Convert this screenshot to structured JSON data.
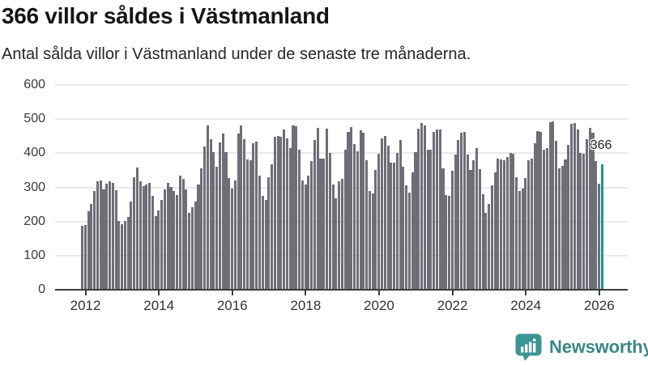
{
  "header": {
    "title": "366 villor såldes i Västmanland",
    "subtitle": "Antal sålda villor i Västmanland under de senaste tre månaderna."
  },
  "chart_data": {
    "type": "bar",
    "title": "366 villor såldes i Västmanland",
    "subtitle": "Antal sålda villor i Västmanland under de senaste tre månaderna.",
    "ylabel": "",
    "xlabel": "",
    "ylim": [
      0,
      600
    ],
    "yticks": [
      0,
      100,
      200,
      300,
      400,
      500,
      600
    ],
    "xticks": [
      "2012",
      "2014",
      "2016",
      "2018",
      "2020",
      "2022",
      "2024",
      "2026"
    ],
    "grid": true,
    "frequency": "monthly",
    "x_start": "2012-01",
    "x_end": "2026-03",
    "bar_color": "#6e6e76",
    "highlight_color": "#1b949b",
    "highlight_last": true,
    "last_value_label": "366",
    "values": [
      185,
      187,
      227,
      248,
      287,
      315,
      318,
      291,
      309,
      315,
      311,
      289,
      199,
      189,
      199,
      210,
      256,
      328,
      356,
      315,
      302,
      307,
      311,
      272,
      214,
      230,
      260,
      291,
      311,
      299,
      287,
      276,
      333,
      323,
      291,
      224,
      240,
      256,
      307,
      354,
      417,
      478,
      438,
      401,
      358,
      429,
      456,
      401,
      326,
      293,
      319,
      455,
      480,
      438,
      380,
      376,
      428,
      431,
      333,
      272,
      260,
      327,
      366,
      445,
      449,
      446,
      468,
      441,
      413,
      480,
      476,
      409,
      319,
      307,
      331,
      374,
      437,
      472,
      383,
      383,
      470,
      398,
      307,
      265,
      315,
      323,
      409,
      460,
      474,
      424,
      403,
      464,
      458,
      377,
      288,
      280,
      348,
      395,
      440,
      448,
      419,
      369,
      371,
      398,
      437,
      358,
      303,
      283,
      341,
      402,
      470,
      486,
      478,
      409,
      409,
      460,
      467,
      467,
      354,
      276,
      272,
      346,
      394,
      437,
      457,
      460,
      394,
      349,
      376,
      413,
      350,
      278,
      224,
      248,
      303,
      341,
      382,
      380,
      378,
      386,
      399,
      396,
      328,
      287,
      294,
      325,
      378,
      382,
      428,
      462,
      459,
      409,
      412,
      488,
      490,
      435,
      354,
      360,
      380,
      423,
      483,
      486,
      467,
      398,
      396,
      438,
      472,
      457,
      374,
      309,
      366
    ]
  },
  "branding": {
    "logo_text": "Newsworthy",
    "logo_icon": "newsworthy-speech-bubble-bars-icon",
    "icon_color": "#3b9595",
    "text_color": "#3c8787"
  }
}
